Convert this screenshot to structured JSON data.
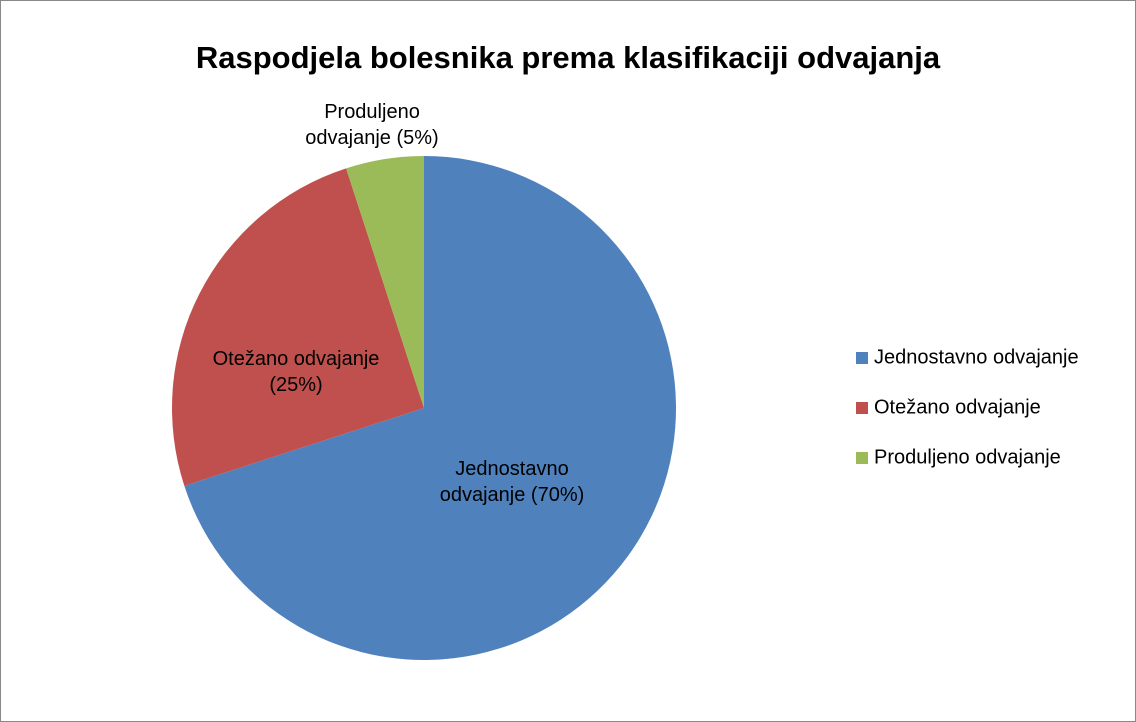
{
  "chart_data": {
    "type": "pie",
    "title": "Raspodjela bolesnika prema klasifikaciji odvajanja",
    "categories": [
      "Jednostavno odvajanje",
      "Otežano odvajanje",
      "Produljeno odvajanje"
    ],
    "values": [
      70,
      25,
      5
    ],
    "value_labels": [
      "Jednostavno odvajanje (70%)",
      "Otežano odvajanje (25%)",
      "Produljeno odvajanje (5%)"
    ],
    "colors": [
      "#4f81bd",
      "#c0504d",
      "#9bbb59"
    ],
    "legend": "right"
  }
}
